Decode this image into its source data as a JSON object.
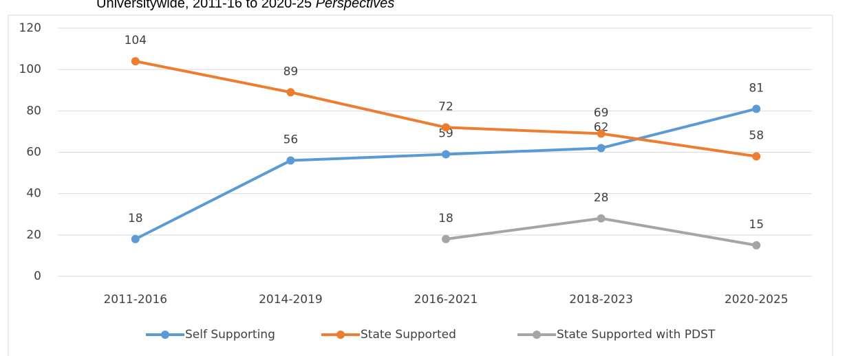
{
  "chart_data": {
    "type": "line",
    "title": "Universitywide, 2011-16 to 2020-25",
    "title_emphasis": "Perspectives",
    "categories": [
      "2011-2016",
      "2014-2019",
      "2016-2021",
      "2018-2023",
      "2020-2025"
    ],
    "series": [
      {
        "name": "Self Supporting",
        "color": "#5b9bd5",
        "values": [
          18,
          56,
          59,
          62,
          81
        ]
      },
      {
        "name": "State Supported",
        "color": "#ed7d31",
        "values": [
          104,
          89,
          72,
          69,
          58
        ]
      },
      {
        "name": "State Supported with PDST",
        "color": "#a5a5a5",
        "values": [
          null,
          null,
          18,
          28,
          15
        ]
      }
    ],
    "ylim": [
      0,
      120
    ],
    "yticks": [
      0,
      20,
      40,
      60,
      80,
      100,
      120
    ],
    "grid": true,
    "legend": "bottom"
  }
}
